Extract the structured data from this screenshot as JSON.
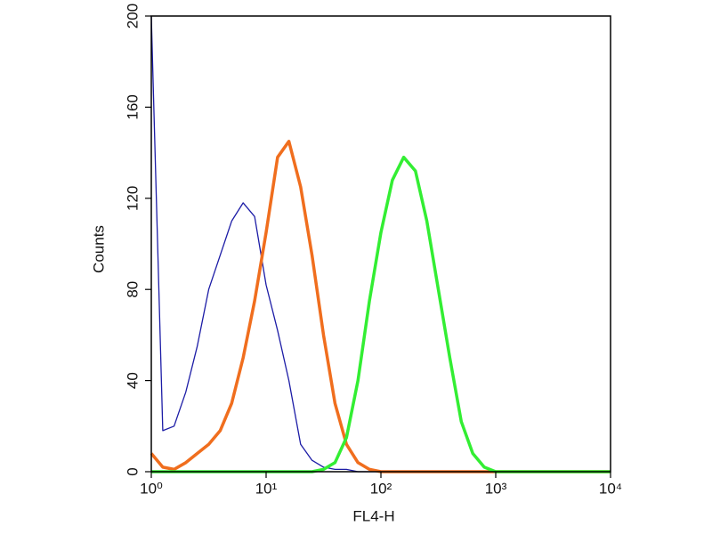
{
  "chart_data": {
    "type": "line",
    "xlabel": "FL4-H",
    "ylabel": "Counts",
    "xscale": "log",
    "xlim": [
      1,
      10000
    ],
    "xticks": [
      {
        "value": 1,
        "label": "10⁰"
      },
      {
        "value": 10,
        "label": "10¹"
      },
      {
        "value": 100,
        "label": "10²"
      },
      {
        "value": 1000,
        "label": "10³"
      },
      {
        "value": 10000,
        "label": "10⁴"
      }
    ],
    "ylim": [
      0,
      200
    ],
    "yticks": [
      0,
      40,
      80,
      120,
      160,
      200
    ],
    "x": [
      1,
      1.26,
      1.58,
      2,
      2.51,
      3.16,
      3.98,
      5.01,
      6.31,
      7.94,
      10,
      12.6,
      15.8,
      20,
      25.1,
      31.6,
      39.8,
      50.1,
      63.1,
      79.4,
      100,
      126,
      158,
      200,
      251,
      316,
      398,
      501,
      631,
      794,
      1000,
      1260,
      1580,
      2000,
      2510,
      3160,
      3980,
      5010,
      6310,
      7940,
      10000
    ],
    "series": [
      {
        "color": "#1c1ca6",
        "values": [
          200,
          18,
          20,
          35,
          55,
          80,
          95,
          110,
          118,
          112,
          82,
          62,
          40,
          12,
          5,
          2,
          1,
          1,
          0,
          0,
          0,
          0,
          0,
          0,
          0,
          0,
          0,
          0,
          0,
          0,
          0,
          0,
          0,
          0,
          0,
          0,
          0,
          0,
          0,
          0,
          0
        ]
      },
      {
        "color": "#f06e1e",
        "values": [
          8,
          2,
          1,
          4,
          8,
          12,
          18,
          30,
          50,
          75,
          105,
          138,
          145,
          125,
          95,
          60,
          30,
          12,
          4,
          1,
          0,
          0,
          0,
          0,
          0,
          0,
          0,
          0,
          0,
          0,
          0,
          0,
          0,
          0,
          0,
          0,
          0,
          0,
          0,
          0,
          0
        ]
      },
      {
        "color": "#33ee33",
        "values": [
          0,
          0,
          0,
          0,
          0,
          0,
          0,
          0,
          0,
          0,
          0,
          0,
          0,
          0,
          0,
          1,
          4,
          15,
          40,
          75,
          105,
          128,
          138,
          132,
          110,
          80,
          50,
          22,
          8,
          2,
          0,
          0,
          0,
          0,
          0,
          0,
          0,
          0,
          0,
          0,
          0
        ]
      }
    ]
  }
}
